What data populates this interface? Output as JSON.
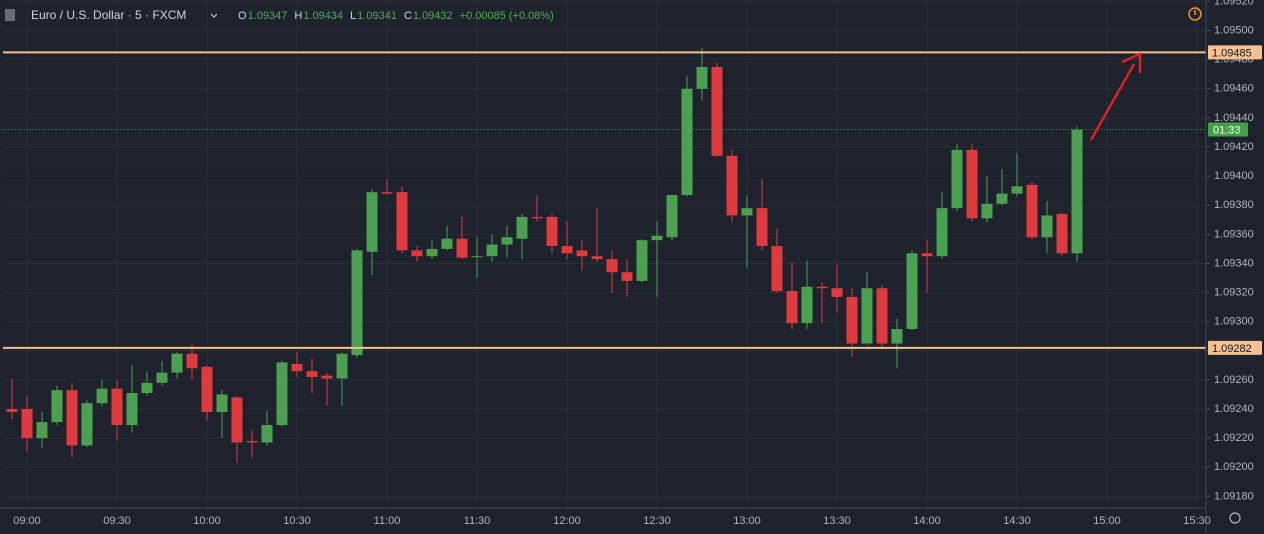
{
  "chart_data": {
    "type": "candlestick",
    "title": "Euro / U.S. Dollar · 5 · FXCM",
    "ohlc_labels": [
      "O",
      "H",
      "L",
      "C"
    ],
    "ohlc_text": [
      "1.09347",
      "1.09434",
      "1.09341",
      "1.09432"
    ],
    "change_text": "+0.00085 (+0.08%)",
    "up_color": "#4ba14f",
    "down_color": "#e0393e",
    "x": [
      "08:55",
      "09:00",
      "09:05",
      "09:10",
      "09:15",
      "09:20",
      "09:25",
      "09:30",
      "09:35",
      "09:40",
      "09:45",
      "09:50",
      "09:55",
      "10:00",
      "10:05",
      "10:10",
      "10:15",
      "10:20",
      "10:25",
      "10:30",
      "10:35",
      "10:40",
      "10:45",
      "10:50",
      "10:55",
      "11:00",
      "11:05",
      "11:10",
      "11:15",
      "11:20",
      "11:25",
      "11:30",
      "11:35",
      "11:40",
      "11:45",
      "11:50",
      "11:55",
      "12:00",
      "12:05",
      "12:10",
      "12:15",
      "12:20",
      "12:25",
      "12:30",
      "12:35",
      "12:40",
      "12:45",
      "12:50",
      "12:55",
      "13:00",
      "13:05",
      "13:10",
      "13:15",
      "13:20",
      "13:25",
      "13:30",
      "13:35",
      "13:40",
      "13:45",
      "13:50",
      "13:55",
      "14:00",
      "14:05",
      "14:10",
      "14:15",
      "14:20",
      "14:25",
      "14:30",
      "14:35",
      "14:40",
      "14:45",
      "14:50"
    ],
    "open": [
      1.0924,
      1.0924,
      1.0922,
      1.09231,
      1.09253,
      1.09215,
      1.09244,
      1.09254,
      1.09229,
      1.09251,
      1.09258,
      1.09265,
      1.09278,
      1.09269,
      1.09238,
      1.09248,
      1.09218,
      1.09217,
      1.09229,
      1.09271,
      1.09266,
      1.09263,
      1.09261,
      1.09277,
      1.09348,
      1.09389,
      1.09389,
      1.09349,
      1.09345,
      1.0935,
      1.09357,
      1.09345,
      1.09345,
      1.09353,
      1.09357,
      1.09372,
      1.09372,
      1.09352,
      1.09349,
      1.09345,
      1.09343,
      1.09334,
      1.09328,
      1.09356,
      1.09358,
      1.09387,
      1.0946,
      1.09475,
      1.09414,
      1.09373,
      1.09378,
      1.09352,
      1.09321,
      1.09299,
      1.09324,
      1.09323,
      1.09317,
      1.09285,
      1.09323,
      1.09285,
      1.09295,
      1.09347,
      1.09345,
      1.09378,
      1.09418,
      1.09371,
      1.09381,
      1.09388,
      1.09394,
      1.09358,
      1.09374,
      1.09347
    ],
    "high": [
      1.09261,
      1.09249,
      1.09238,
      1.09256,
      1.09258,
      1.09246,
      1.0926,
      1.0926,
      1.0927,
      1.09266,
      1.09273,
      1.09279,
      1.09284,
      1.0927,
      1.09253,
      1.09249,
      1.09225,
      1.09239,
      1.09273,
      1.09279,
      1.09275,
      1.09265,
      1.09279,
      1.0935,
      1.09391,
      1.09398,
      1.09393,
      1.09352,
      1.09356,
      1.09366,
      1.09372,
      1.09358,
      1.0936,
      1.09366,
      1.09374,
      1.09387,
      1.09374,
      1.09369,
      1.09356,
      1.09378,
      1.09349,
      1.09343,
      1.09357,
      1.09369,
      1.09387,
      1.09469,
      1.09488,
      1.09478,
      1.09418,
      1.09387,
      1.09398,
      1.09364,
      1.09341,
      1.09342,
      1.09327,
      1.09339,
      1.09323,
      1.09334,
      1.09325,
      1.09302,
      1.09349,
      1.09356,
      1.09389,
      1.09422,
      1.09422,
      1.094,
      1.09405,
      1.09416,
      1.09396,
      1.09383,
      1.09375,
      1.09434
    ],
    "low": [
      1.09233,
      1.09211,
      1.09213,
      1.09229,
      1.09207,
      1.09214,
      1.09242,
      1.09218,
      1.09224,
      1.09249,
      1.09256,
      1.09261,
      1.0926,
      1.09232,
      1.0922,
      1.09203,
      1.09207,
      1.09215,
      1.09228,
      1.09262,
      1.09251,
      1.09242,
      1.09242,
      1.09275,
      1.09332,
      1.09387,
      1.09347,
      1.09341,
      1.09343,
      1.09349,
      1.09343,
      1.0933,
      1.09341,
      1.09344,
      1.09343,
      1.09369,
      1.09347,
      1.09343,
      1.09335,
      1.09341,
      1.0932,
      1.09317,
      1.09327,
      1.09317,
      1.09356,
      1.09386,
      1.09452,
      1.09413,
      1.09368,
      1.09337,
      1.09349,
      1.0932,
      1.09295,
      1.09295,
      1.09299,
      1.09306,
      1.09276,
      1.09284,
      1.09281,
      1.09268,
      1.09294,
      1.0932,
      1.09343,
      1.09376,
      1.09369,
      1.09368,
      1.0938,
      1.09386,
      1.09357,
      1.09347,
      1.09345,
      1.09341
    ],
    "close": [
      1.09238,
      1.0922,
      1.09231,
      1.09253,
      1.09215,
      1.09244,
      1.09254,
      1.09229,
      1.09251,
      1.09258,
      1.09265,
      1.09278,
      1.09268,
      1.09238,
      1.0925,
      1.09217,
      1.09217,
      1.09229,
      1.09272,
      1.09266,
      1.09262,
      1.09261,
      1.09278,
      1.09349,
      1.09389,
      1.09388,
      1.09349,
      1.09345,
      1.0935,
      1.09357,
      1.09344,
      1.09345,
      1.09353,
      1.09358,
      1.09372,
      1.09371,
      1.09352,
      1.09347,
      1.09345,
      1.09343,
      1.09334,
      1.09328,
      1.09356,
      1.09359,
      1.09387,
      1.0946,
      1.09475,
      1.09414,
      1.09373,
      1.09378,
      1.09352,
      1.09321,
      1.09299,
      1.09324,
      1.09323,
      1.09317,
      1.09285,
      1.09323,
      1.09285,
      1.09295,
      1.09347,
      1.09345,
      1.09378,
      1.09418,
      1.09371,
      1.09381,
      1.09388,
      1.09393,
      1.09358,
      1.09373,
      1.09347,
      1.09432
    ],
    "xlim": [
      "08:52",
      "15:33"
    ],
    "xticks": [
      "09:00",
      "09:30",
      "10:00",
      "10:30",
      "11:00",
      "11:30",
      "12:00",
      "12:30",
      "13:00",
      "13:30",
      "14:00",
      "14:30",
      "15:00",
      "15:30"
    ],
    "ylim": [
      1.09172,
      1.09521
    ],
    "yticks": [
      {
        "value": 1.0918,
        "label": "1.09180"
      },
      {
        "value": 1.092,
        "label": "1.09200"
      },
      {
        "value": 1.0922,
        "label": "1.09220"
      },
      {
        "value": 1.0924,
        "label": "1.09240"
      },
      {
        "value": 1.0926,
        "label": "1.09260"
      },
      {
        "value": 1.0928,
        "label": "1.09280"
      },
      {
        "value": 1.093,
        "label": "1.09300"
      },
      {
        "value": 1.0932,
        "label": "1.09320"
      },
      {
        "value": 1.0934,
        "label": "1.09340"
      },
      {
        "value": 1.0936,
        "label": "1.09360"
      },
      {
        "value": 1.0938,
        "label": "1.09380"
      },
      {
        "value": 1.094,
        "label": "1.09400"
      },
      {
        "value": 1.0942,
        "label": "1.09420"
      },
      {
        "value": 1.0944,
        "label": "1.09440"
      },
      {
        "value": 1.0946,
        "label": "1.09460"
      },
      {
        "value": 1.0948,
        "label": "1.09480"
      },
      {
        "value": 1.095,
        "label": "1.09500"
      },
      {
        "value": 1.0952,
        "label": "1.09520"
      }
    ],
    "grid": true,
    "hlines": [
      {
        "value": 1.09485,
        "color": "#f5c28f"
      },
      {
        "value": 1.09282,
        "color": "#f5c28f"
      }
    ],
    "price_line": {
      "value": 1.09432,
      "label": "01:33",
      "color": "#43a047"
    }
  }
}
